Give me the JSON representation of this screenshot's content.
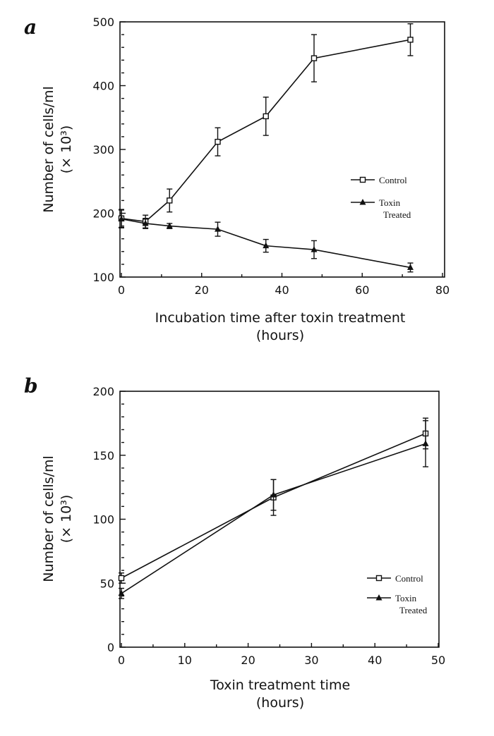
{
  "chart_data": [
    {
      "panel": "a",
      "type": "line",
      "xlabel": "Incubation time after toxin treatment",
      "xlabel_unit": "(hours)",
      "ylabel": "Number of cells/ml",
      "ylabel_unit": "(× 10³)",
      "xlim": [
        0,
        80
      ],
      "ylim": [
        100,
        500
      ],
      "xticks": [
        0,
        20,
        40,
        60,
        80
      ],
      "yticks": [
        100,
        200,
        300,
        400,
        500
      ],
      "legend_position": "right",
      "series": [
        {
          "name": "Control",
          "marker": "open-square",
          "x": [
            0,
            6,
            12,
            24,
            36,
            48,
            72
          ],
          "y": [
            192,
            187,
            220,
            312,
            352,
            443,
            472
          ],
          "err": [
            14,
            10,
            18,
            22,
            30,
            37,
            25
          ]
        },
        {
          "name": "Toxin Treated",
          "legend_lines": [
            "Toxin",
            "Treated"
          ],
          "marker": "filled-triangle",
          "x": [
            0,
            6,
            12,
            24,
            36,
            48,
            72
          ],
          "y": [
            191,
            184,
            180,
            175,
            149,
            143,
            115
          ],
          "err": [
            14,
            8,
            4,
            11,
            10,
            14,
            7
          ]
        }
      ]
    },
    {
      "panel": "b",
      "type": "line",
      "xlabel": "Toxin treatment time",
      "xlabel_unit": "(hours)",
      "ylabel": "Number of cells/ml",
      "ylabel_unit": "(× 10³)",
      "xlim": [
        0,
        50
      ],
      "ylim": [
        0,
        200
      ],
      "xticks": [
        0,
        10,
        20,
        30,
        40,
        50
      ],
      "yticks": [
        0,
        50,
        100,
        150,
        200
      ],
      "legend_position": "bottom-right",
      "series": [
        {
          "name": "Control",
          "marker": "open-square",
          "x": [
            0,
            24,
            48
          ],
          "y": [
            54,
            117,
            167
          ],
          "err": [
            4,
            14,
            12
          ]
        },
        {
          "name": "Toxin Treated",
          "legend_lines": [
            "Toxin",
            "Treated"
          ],
          "marker": "filled-triangle",
          "x": [
            0,
            24,
            48
          ],
          "y": [
            42,
            119,
            159
          ],
          "err": [
            4,
            12,
            18
          ]
        }
      ]
    }
  ]
}
